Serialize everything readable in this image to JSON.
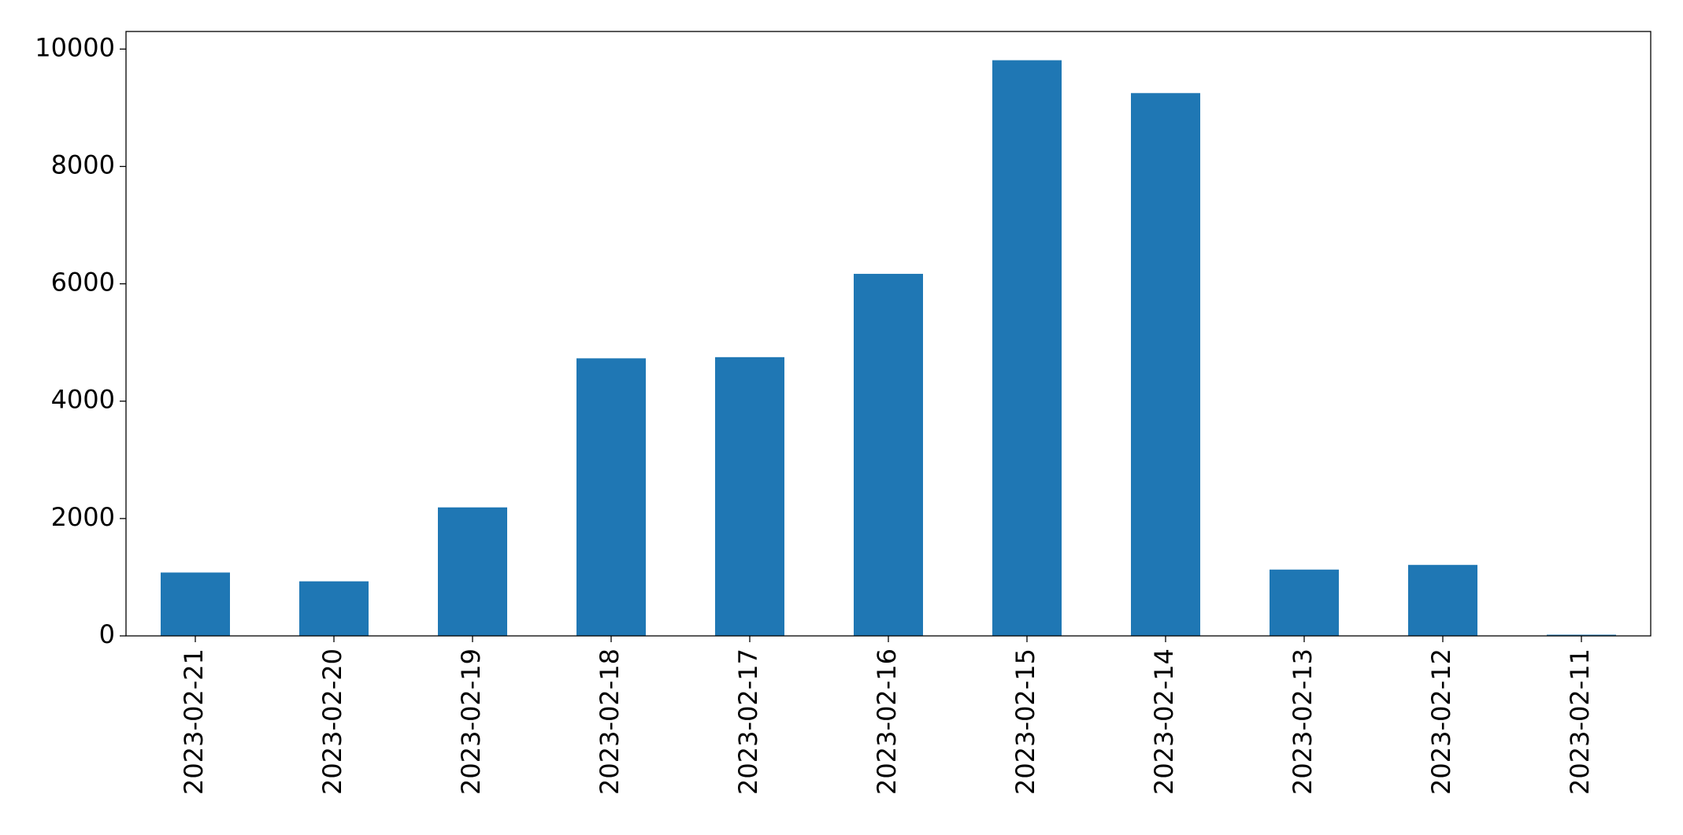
{
  "chart_data": {
    "type": "bar",
    "categories": [
      "2023-02-21",
      "2023-02-20",
      "2023-02-19",
      "2023-02-18",
      "2023-02-17",
      "2023-02-16",
      "2023-02-15",
      "2023-02-14",
      "2023-02-13",
      "2023-02-12",
      "2023-02-11"
    ],
    "values": [
      1080,
      930,
      2190,
      4730,
      4750,
      6170,
      9810,
      9250,
      1130,
      1210,
      20
    ],
    "color": "#1f77b4",
    "ylim": [
      0,
      10300
    ],
    "yticks": [
      0,
      2000,
      4000,
      6000,
      8000,
      10000
    ],
    "grid": false
  }
}
